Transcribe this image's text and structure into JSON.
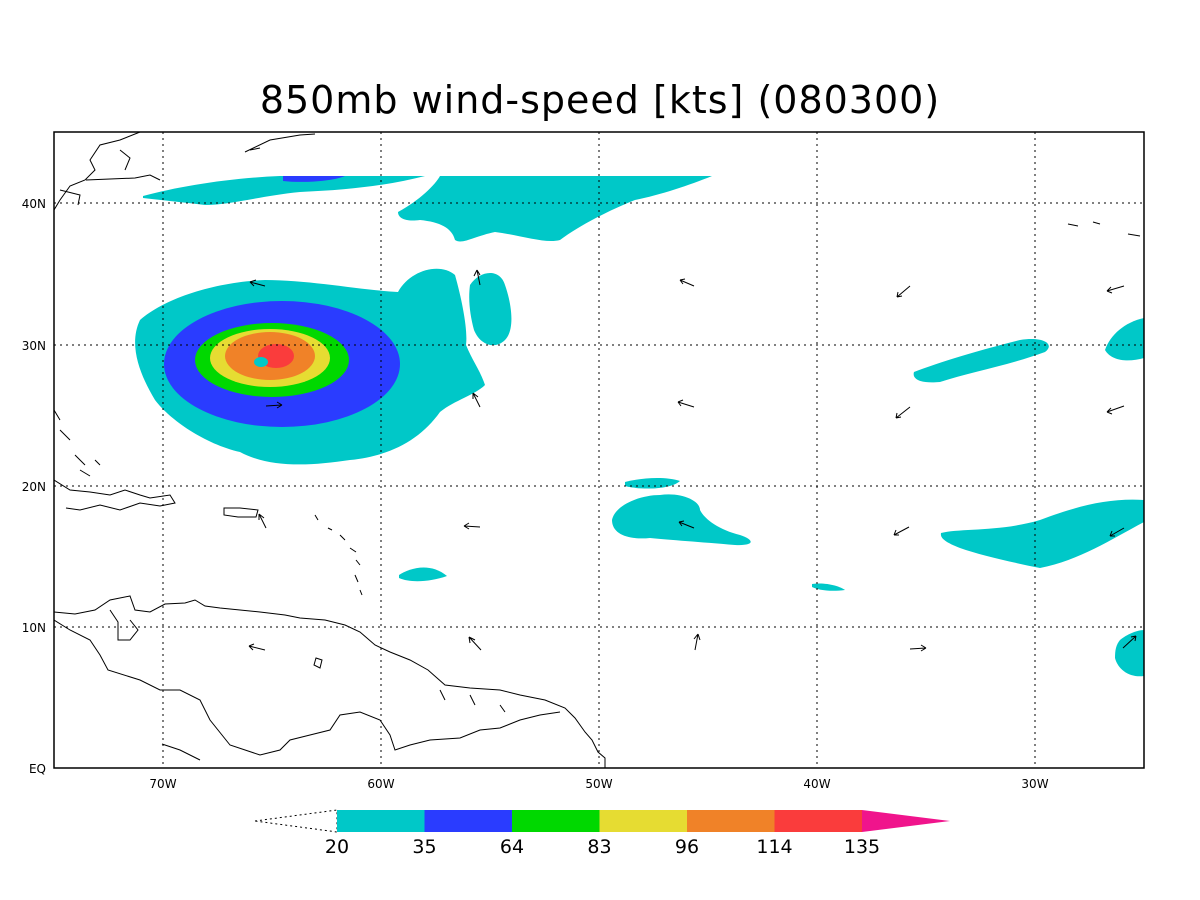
{
  "title": "850mb wind-speed [kts] (080300)",
  "map": {
    "lon_labels": [
      "70W",
      "60W",
      "50W",
      "40W",
      "30W"
    ],
    "lat_labels": [
      "40N",
      "30N",
      "20N",
      "10N",
      "EQ"
    ]
  },
  "colorbar": {
    "levels": [
      "20",
      "35",
      "64",
      "83",
      "96",
      "114",
      "135"
    ],
    "colors": [
      "#00c8c8",
      "#2a3cff",
      "#00d800",
      "#e6dc32",
      "#f08228",
      "#fa3c3c",
      "#f0148c"
    ]
  },
  "shading_colors": {
    "ws20": "#00c8c8",
    "ws35": "#2a3cff",
    "ws64": "#00d800",
    "ws83": "#e6dc32",
    "ws96": "#f08228",
    "ws114": "#fa3c3c"
  }
}
